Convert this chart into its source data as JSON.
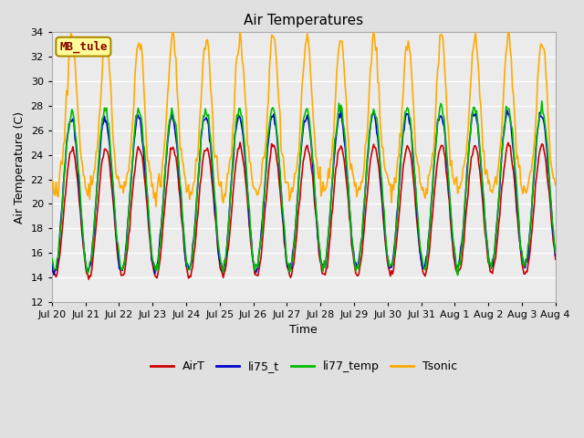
{
  "title": "Air Temperatures",
  "xlabel": "Time",
  "ylabel": "Air Temperature (C)",
  "ylim": [
    12,
    34
  ],
  "yticks": [
    12,
    14,
    16,
    18,
    20,
    22,
    24,
    26,
    28,
    30,
    32,
    34
  ],
  "n_points": 480,
  "n_days": 15,
  "series": {
    "AirT": {
      "color": "#cc0000",
      "lw": 1.2
    },
    "li75_t": {
      "color": "#0000cc",
      "lw": 1.2
    },
    "li77_temp": {
      "color": "#00bb00",
      "lw": 1.2
    },
    "Tsonic": {
      "color": "#ffaa00",
      "lw": 1.2
    }
  },
  "xtick_labels": [
    "Jul 20",
    "Jul 21",
    "Jul 22",
    "Jul 23",
    "Jul 24",
    "Jul 25",
    "Jul 26",
    "Jul 27",
    "Jul 28",
    "Jul 29",
    "Jul 30",
    "Jul 31",
    "Aug 1",
    "Aug 2",
    "Aug 3",
    "Aug 4"
  ],
  "annotation_text": "MB_tule",
  "annotation_box_color": "#ffff99",
  "annotation_box_edge": "#aa8800",
  "annotation_text_color": "#880000",
  "background_color": "#e0e0e0",
  "plot_bg_color": "#ebebeb",
  "grid_color": "#ffffff",
  "figsize": [
    6.4,
    4.8
  ],
  "dpi": 100
}
